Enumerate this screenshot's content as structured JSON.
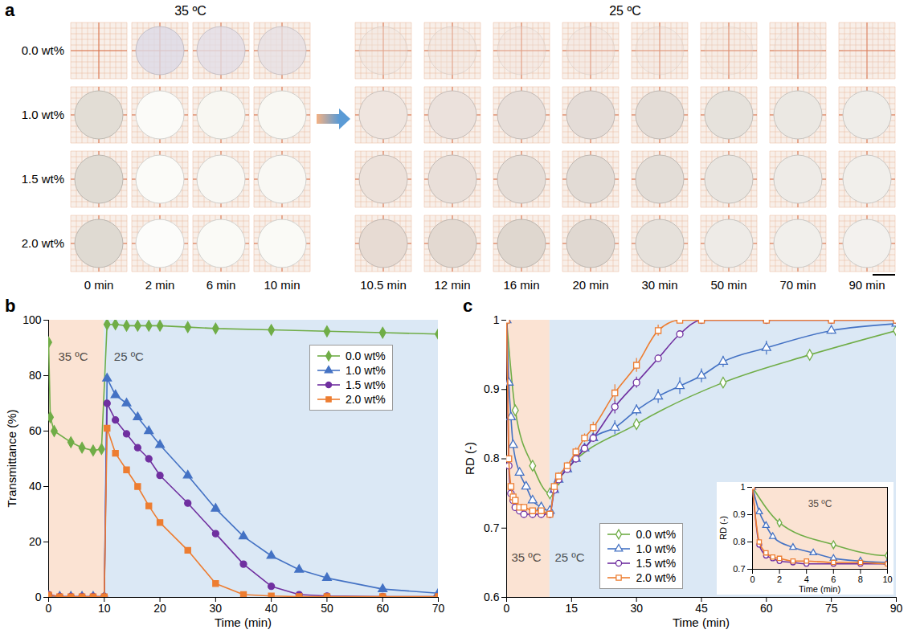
{
  "photo_panel": {
    "panel_label": "a",
    "groups": [
      {
        "title": "35 ºC",
        "times": [
          "0 min",
          "2 min",
          "6 min",
          "10 min"
        ]
      },
      {
        "title": "25 ºC",
        "times": [
          "10.5 min",
          "12 min",
          "16 min",
          "20 min",
          "30 min",
          "50 min",
          "70 min",
          "90 min"
        ]
      }
    ],
    "rows": [
      {
        "label": "0.0 wt%",
        "disc_colors": [
          "#f6ede800",
          "#dcd9e6cc",
          "#e2dde6cc",
          "#e6e0e4cc",
          "#eee3dd70",
          "#eee3dd70",
          "#eee3dd60",
          "#eee3dd60",
          "#eee3dd50",
          "#eee3dd40",
          "#eee3dd30",
          "#eee3dd20"
        ]
      },
      {
        "label": "1.0 wt%",
        "disc_colors": [
          "#e2ddd5",
          "#fbfbf8",
          "#f8f7f2",
          "#f9f8f3",
          "#efe5df",
          "#ebe1dc",
          "#e7ded9",
          "#e4dcd7",
          "#e3dcd6",
          "#e6e2dc",
          "#ebe8e3",
          "#efede9"
        ]
      },
      {
        "label": "1.5 wt%",
        "disc_colors": [
          "#e0dbd3",
          "#fbfbf8",
          "#f9f8f4",
          "#f9f8f4",
          "#ece1da",
          "#e9dfd9",
          "#e5ddd7",
          "#e2dbd5",
          "#e3ddd7",
          "#e9e5e0",
          "#eeebe7",
          "#f1efeb"
        ]
      },
      {
        "label": "2.0 wt%",
        "disc_colors": [
          "#dfdad2",
          "#fcfcfa",
          "#fafaf6",
          "#fafaf6",
          "#e7dbd3",
          "#e3d9d1",
          "#dfd7cf",
          "#e0d8d1",
          "#e6e1db",
          "#eeebe7",
          "#f1efeb",
          "#f3f1ee"
        ]
      }
    ]
  },
  "chart_data": [
    {
      "panel_label": "b",
      "type": "line",
      "x_label": "Time (min)",
      "y_label": "Transmittance (%)",
      "xlim": [
        0,
        70
      ],
      "xticks": [
        0,
        10,
        20,
        30,
        40,
        50,
        60,
        70
      ],
      "ylim": [
        0,
        100
      ],
      "yticks": [
        0,
        20,
        40,
        60,
        80,
        100
      ],
      "legend": "upper right",
      "line_style": "solid",
      "phases": [
        {
          "label": "35 ºC",
          "start": 0,
          "end": 10,
          "color": "#fbe3d3"
        },
        {
          "label": "25 ºC",
          "start": 10,
          "end": 70,
          "color": "#dbe8f5"
        }
      ],
      "series": [
        {
          "name": "0.0 wt%",
          "color": "#70ad47",
          "marker": "diamond",
          "x": [
            0,
            0.3,
            1,
            4,
            6,
            8,
            9.5,
            10.5,
            12,
            14,
            16,
            18,
            20,
            25,
            30,
            40,
            50,
            60,
            70
          ],
          "values": [
            92,
            65,
            60,
            56,
            54,
            53,
            53.5,
            98.5,
            98.5,
            98,
            98,
            98,
            98,
            97.5,
            97,
            96.5,
            96,
            95.5,
            95
          ]
        },
        {
          "name": "1.0 wt%",
          "color": "#4472c4",
          "marker": "triangle",
          "x": [
            0,
            2,
            4,
            6,
            8,
            10,
            10.5,
            12,
            14,
            16,
            18,
            20,
            25,
            30,
            35,
            40,
            45,
            50,
            60,
            70
          ],
          "values": [
            0.5,
            0.3,
            0.3,
            0.3,
            0.3,
            0.3,
            79,
            73,
            70,
            65,
            60,
            55,
            44,
            32,
            22,
            15,
            10,
            7,
            3,
            1.5
          ]
        },
        {
          "name": "1.5 wt%",
          "color": "#7030a0",
          "marker": "circle",
          "x": [
            0,
            2,
            4,
            6,
            8,
            10,
            10.5,
            12,
            14,
            16,
            18,
            20,
            25,
            30,
            35,
            40,
            45,
            50,
            60,
            70
          ],
          "values": [
            1,
            0.3,
            0.3,
            0.3,
            0.3,
            0.3,
            70,
            64,
            59,
            54,
            50,
            44,
            34,
            23,
            12,
            4,
            1,
            0.5,
            0.3,
            0.3
          ]
        },
        {
          "name": "2.0 wt%",
          "color": "#ed7d31",
          "marker": "square",
          "x": [
            0,
            2,
            4,
            6,
            8,
            10,
            10.5,
            12,
            14,
            16,
            18,
            20,
            25,
            30,
            35,
            40,
            45,
            50,
            60,
            70
          ],
          "values": [
            0.8,
            0.2,
            0.2,
            0.2,
            0.2,
            0.2,
            61,
            52,
            46,
            40,
            33,
            27,
            17,
            5,
            1,
            0.5,
            0.3,
            0.3,
            0.3,
            0.3
          ]
        }
      ]
    },
    {
      "panel_label": "c",
      "type": "line",
      "x_label": "Time (min)",
      "y_label": "RD (-)",
      "xlim": [
        0,
        90
      ],
      "xticks": [
        0,
        15,
        30,
        45,
        60,
        75,
        90
      ],
      "ylim": [
        0.6,
        1
      ],
      "yticks": [
        0.6,
        0.7,
        0.8,
        0.9,
        1
      ],
      "legend": "lower left",
      "line_style": "smooth",
      "phases": [
        {
          "label": "35 ºC",
          "start": 0,
          "end": 10,
          "color": "#fbe3d3"
        },
        {
          "label": "25 ºC",
          "start": 10,
          "end": 90,
          "color": "#dbe8f5"
        }
      ],
      "inset": {
        "x_label": "Time (min)",
        "y_label": "RD (-)",
        "xlim": [
          0,
          10
        ],
        "xticks": [
          0,
          2,
          4,
          6,
          8,
          10
        ],
        "ylim": [
          0.7,
          1
        ],
        "yticks": [
          0.7,
          0.8,
          0.9,
          1
        ],
        "phases": [
          {
            "label": "35 ºC",
            "start": 0,
            "end": 10,
            "color": "#fbe3d3"
          }
        ]
      },
      "series": [
        {
          "name": "0.0 wt%",
          "color": "#70ad47",
          "marker": "open-diamond",
          "x": [
            0,
            2,
            6,
            10,
            12,
            30,
            50,
            70,
            90
          ],
          "values": [
            1,
            0.87,
            0.79,
            0.75,
            0.77,
            0.85,
            0.91,
            0.95,
            0.985
          ],
          "errors": [
            0,
            0.002,
            0.002,
            0.003,
            0.003,
            0.004,
            0.003,
            0.003,
            0.003
          ]
        },
        {
          "name": "1.0 wt%",
          "color": "#4472c4",
          "marker": "open-triangle",
          "x": [
            0,
            0.5,
            1,
            1.5,
            3,
            4.5,
            6,
            8,
            10,
            11,
            12,
            14,
            16,
            18,
            20,
            25,
            30,
            35,
            40,
            45,
            50,
            60,
            75,
            90
          ],
          "values": [
            1,
            0.91,
            0.86,
            0.82,
            0.78,
            0.76,
            0.74,
            0.73,
            0.725,
            0.755,
            0.77,
            0.785,
            0.8,
            0.815,
            0.83,
            0.845,
            0.87,
            0.89,
            0.905,
            0.92,
            0.94,
            0.96,
            0.985,
            0.995
          ],
          "errors": [
            0,
            0.003,
            0.004,
            0.004,
            0.004,
            0.004,
            0.004,
            0.004,
            0.004,
            0.005,
            0.005,
            0.005,
            0.005,
            0.005,
            0.006,
            0.01,
            0.008,
            0.01,
            0.012,
            0.01,
            0.008,
            0.01,
            0.005,
            0.003
          ]
        },
        {
          "name": "1.5 wt%",
          "color": "#7030a0",
          "marker": "open-circle",
          "x": [
            0,
            0.5,
            1,
            1.5,
            2,
            3,
            4,
            6,
            8,
            10,
            11,
            12,
            14,
            16,
            18,
            20,
            25,
            30,
            35,
            40,
            45,
            60,
            75,
            90
          ],
          "values": [
            1,
            0.79,
            0.75,
            0.74,
            0.73,
            0.725,
            0.72,
            0.72,
            0.72,
            0.72,
            0.755,
            0.77,
            0.785,
            0.8,
            0.815,
            0.83,
            0.875,
            0.91,
            0.945,
            0.98,
            1,
            1,
            1,
            1
          ],
          "errors": [
            0,
            0.003,
            0.003,
            0.003,
            0.003,
            0.003,
            0.003,
            0.003,
            0.003,
            0.003,
            0.005,
            0.005,
            0.005,
            0.006,
            0.006,
            0.006,
            0.01,
            0.008,
            0.005,
            0.005,
            0.002,
            0.002,
            0.002,
            0.002
          ]
        },
        {
          "name": "2.0 wt%",
          "color": "#ed7d31",
          "marker": "open-square",
          "x": [
            0,
            0.5,
            1,
            1.5,
            2,
            3,
            4,
            6,
            8,
            10,
            11,
            12,
            14,
            16,
            18,
            20,
            25,
            30,
            35,
            40,
            45,
            60,
            75,
            90
          ],
          "values": [
            1,
            0.8,
            0.76,
            0.745,
            0.74,
            0.73,
            0.73,
            0.725,
            0.725,
            0.72,
            0.76,
            0.775,
            0.79,
            0.81,
            0.83,
            0.845,
            0.895,
            0.935,
            0.985,
            1,
            1,
            1,
            1,
            1
          ],
          "errors": [
            0,
            0.003,
            0.003,
            0.003,
            0.003,
            0.003,
            0.003,
            0.003,
            0.003,
            0.003,
            0.005,
            0.005,
            0.005,
            0.006,
            0.006,
            0.008,
            0.012,
            0.01,
            0.008,
            0.004,
            0.002,
            0.002,
            0.002,
            0.002
          ]
        }
      ]
    }
  ]
}
